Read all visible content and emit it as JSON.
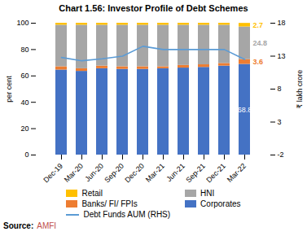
{
  "chart_data": {
    "type": "bar",
    "stacked": true,
    "title": "Chart 1.56: Investor Profile of Debt Schemes",
    "categories": [
      "Dec-19",
      "Mar-20",
      "Jun-20",
      "Sep-20",
      "Dec-20",
      "Mar-21",
      "Jun-21",
      "Sep-21",
      "Dec-21",
      "Mar-22"
    ],
    "ylabel": "per cent",
    "y2label": "₹ lakh crore",
    "ylim": [
      0,
      100
    ],
    "yticks": [
      0,
      20,
      40,
      60,
      80,
      100
    ],
    "y2lim": [
      -2,
      18
    ],
    "y2ticks": [
      -2,
      3,
      8,
      13,
      18
    ],
    "legend": "bottom",
    "series": [
      {
        "name": "Corporates",
        "color": "#4472C4",
        "values": [
          64.5,
          63.5,
          65.5,
          65.0,
          65.0,
          65.5,
          66.0,
          66.5,
          67.5,
          68.8
        ]
      },
      {
        "name": "Banks/ FI/ FPIs",
        "color": "#ED7D31",
        "values": [
          2.5,
          2.0,
          2.0,
          2.0,
          2.0,
          1.5,
          2.0,
          2.0,
          2.0,
          3.6
        ]
      },
      {
        "name": "HNI",
        "color": "#A6A6A6",
        "values": [
          31.5,
          33.0,
          31.0,
          31.5,
          31.5,
          31.5,
          30.5,
          30.0,
          29.0,
          24.8
        ]
      },
      {
        "name": "Retail",
        "color": "#FFC000",
        "values": [
          1.5,
          1.5,
          1.5,
          1.5,
          1.5,
          1.5,
          1.5,
          1.5,
          1.5,
          2.7
        ]
      },
      {
        "name": "Debt Funds AUM (RHS)",
        "type": "line",
        "axis": "y2",
        "color": "#5B9BD5",
        "values": [
          12.8,
          12.3,
          12.6,
          13.0,
          14.5,
          14.0,
          14.0,
          14.0,
          14.0,
          12.5
        ]
      }
    ],
    "annotations": [
      {
        "text": "2.7",
        "series": "Retail",
        "category": "Mar-22"
      },
      {
        "text": "24.8",
        "series": "HNI",
        "category": "Mar-22"
      },
      {
        "text": "3.6",
        "series": "Banks/ FI/ FPIs",
        "category": "Mar-22"
      },
      {
        "text": "68.8",
        "series": "Corporates",
        "category": "Mar-22"
      }
    ],
    "source_label": "Source:",
    "source": "AMFI",
    "source_color": "#C0504D"
  }
}
